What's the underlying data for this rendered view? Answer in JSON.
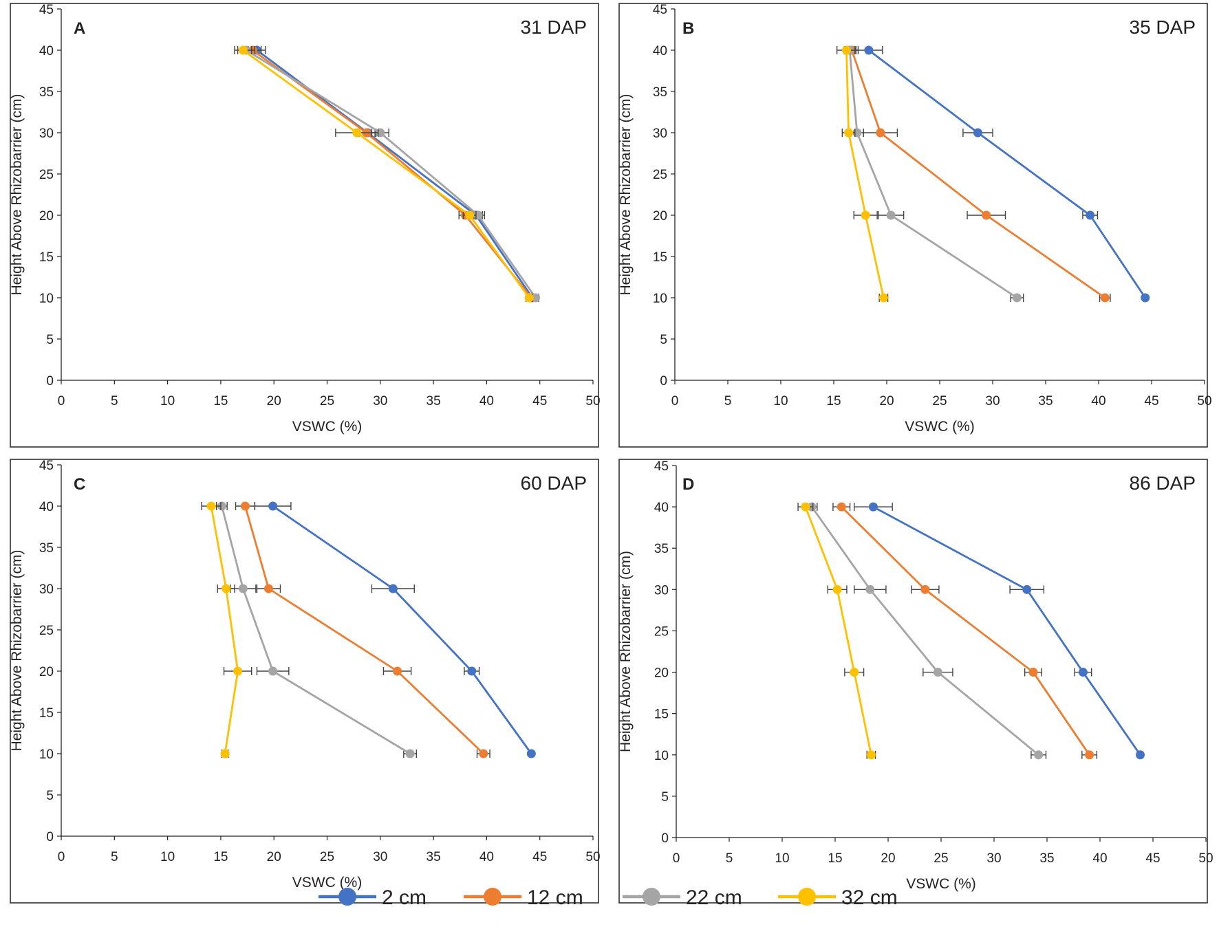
{
  "figure": {
    "legend": [
      {
        "name": "2 cm",
        "color": "#4472C4"
      },
      {
        "name": "12 cm",
        "color": "#ED7D31"
      },
      {
        "name": "22 cm",
        "color": "#A5A5A5"
      },
      {
        "name": "32 cm",
        "color": "#FFC000"
      }
    ]
  },
  "chart_data": [
    {
      "type": "line",
      "panel": "A",
      "title": "31 DAP",
      "xlabel": "VSWC (%)",
      "ylabel": "Height Above Rhizobarrier (cm)",
      "xlim": [
        0,
        50
      ],
      "ylim": [
        0,
        45
      ],
      "xticks": [
        0,
        5,
        10,
        15,
        20,
        25,
        30,
        35,
        40,
        45,
        50
      ],
      "yticks": [
        0,
        5,
        10,
        15,
        20,
        25,
        30,
        35,
        40,
        45
      ],
      "series": [
        {
          "name": "2 cm",
          "color": "#4472C4",
          "points": [
            [
              18.4,
              40
            ],
            [
              28.8,
              30
            ],
            [
              39.0,
              20
            ],
            [
              44.3,
              10
            ]
          ],
          "err": [
            0.8,
            0.8,
            0.6,
            0.3
          ]
        },
        {
          "name": "12 cm",
          "color": "#ED7D31",
          "points": [
            [
              18.0,
              40
            ],
            [
              28.7,
              30
            ],
            [
              38.0,
              20
            ],
            [
              44.2,
              10
            ]
          ],
          "err": [
            0.8,
            0.8,
            0.6,
            0.3
          ]
        },
        {
          "name": "22 cm",
          "color": "#A5A5A5",
          "points": [
            [
              17.4,
              40
            ],
            [
              30.0,
              30
            ],
            [
              39.2,
              20
            ],
            [
              44.6,
              10
            ]
          ],
          "err": [
            0.8,
            0.8,
            0.6,
            0.3
          ]
        },
        {
          "name": "32 cm",
          "color": "#FFC000",
          "points": [
            [
              17.1,
              40
            ],
            [
              27.8,
              30
            ],
            [
              38.4,
              20
            ],
            [
              44.0,
              10
            ]
          ],
          "err": [
            0.8,
            2.0,
            0.6,
            0.3
          ]
        }
      ]
    },
    {
      "type": "line",
      "panel": "B",
      "title": "35 DAP",
      "xlabel": "VSWC (%)",
      "ylabel": "Height Above Rhizobarrier (cm)",
      "xlim": [
        0,
        50
      ],
      "ylim": [
        0,
        45
      ],
      "xticks": [
        0,
        5,
        10,
        15,
        20,
        25,
        30,
        35,
        40,
        45,
        50
      ],
      "yticks": [
        0,
        5,
        10,
        15,
        20,
        25,
        30,
        35,
        40,
        45
      ],
      "series": [
        {
          "name": "2 cm",
          "color": "#4472C4",
          "points": [
            [
              18.3,
              40
            ],
            [
              28.6,
              30
            ],
            [
              39.2,
              20
            ],
            [
              44.4,
              10
            ]
          ],
          "err": [
            1.3,
            1.4,
            0.7,
            0
          ]
        },
        {
          "name": "12 cm",
          "color": "#ED7D31",
          "points": [
            [
              16.7,
              40
            ],
            [
              19.4,
              30
            ],
            [
              29.4,
              20
            ],
            [
              40.6,
              10
            ]
          ],
          "err": [
            0.6,
            1.6,
            1.8,
            0.5
          ]
        },
        {
          "name": "22 cm",
          "color": "#A5A5A5",
          "points": [
            [
              16.5,
              40
            ],
            [
              17.2,
              30
            ],
            [
              20.4,
              20
            ],
            [
              32.3,
              10
            ]
          ],
          "err": [
            0.5,
            0.6,
            1.2,
            0.6
          ]
        },
        {
          "name": "32 cm",
          "color": "#FFC000",
          "points": [
            [
              16.2,
              40
            ],
            [
              16.4,
              30
            ],
            [
              18.0,
              20
            ],
            [
              19.7,
              10
            ]
          ],
          "err": [
            0.9,
            0.6,
            1.1,
            0.4
          ]
        }
      ]
    },
    {
      "type": "line",
      "panel": "C",
      "title": "60 DAP",
      "xlabel": "VSWC (%)",
      "ylabel": "Height Above Rhizobarrier (cm)",
      "xlim": [
        0,
        50
      ],
      "ylim": [
        0,
        45
      ],
      "xticks": [
        0,
        5,
        10,
        15,
        20,
        25,
        30,
        35,
        40,
        45,
        50
      ],
      "yticks": [
        0,
        5,
        10,
        15,
        20,
        25,
        30,
        35,
        40,
        45
      ],
      "series": [
        {
          "name": "2 cm",
          "color": "#4472C4",
          "points": [
            [
              19.9,
              40
            ],
            [
              31.2,
              30
            ],
            [
              38.6,
              20
            ],
            [
              44.2,
              10
            ]
          ],
          "err": [
            1.7,
            2.0,
            0.7,
            0
          ]
        },
        {
          "name": "12 cm",
          "color": "#ED7D31",
          "points": [
            [
              17.3,
              40
            ],
            [
              19.5,
              30
            ],
            [
              31.6,
              20
            ],
            [
              39.7,
              10
            ]
          ],
          "err": [
            0.9,
            1.1,
            1.3,
            0.6
          ]
        },
        {
          "name": "22 cm",
          "color": "#A5A5A5",
          "points": [
            [
              15.1,
              40
            ],
            [
              17.1,
              30
            ],
            [
              19.9,
              20
            ],
            [
              32.8,
              10
            ]
          ],
          "err": [
            0.5,
            1.2,
            1.5,
            0.6
          ]
        },
        {
          "name": "32 cm",
          "color": "#FFC000",
          "points": [
            [
              14.1,
              40
            ],
            [
              15.5,
              30
            ],
            [
              16.6,
              20
            ],
            [
              15.4,
              10
            ]
          ],
          "err": [
            0.9,
            0.8,
            1.3,
            0.3
          ]
        }
      ]
    },
    {
      "type": "line",
      "panel": "D",
      "title": "86 DAP",
      "xlabel": "VSWC (%)",
      "ylabel": "Height Above Rhizobarrier (cm)",
      "xlim": [
        0,
        50
      ],
      "ylim": [
        0,
        45
      ],
      "xticks": [
        0,
        5,
        10,
        15,
        20,
        25,
        30,
        35,
        40,
        45,
        50
      ],
      "yticks": [
        0,
        5,
        10,
        15,
        20,
        25,
        30,
        35,
        40,
        45
      ],
      "series": [
        {
          "name": "2 cm",
          "color": "#4472C4",
          "points": [
            [
              18.6,
              40
            ],
            [
              33.1,
              30
            ],
            [
              38.4,
              20
            ],
            [
              43.8,
              10
            ]
          ],
          "err": [
            1.8,
            1.6,
            0.8,
            0
          ]
        },
        {
          "name": "12 cm",
          "color": "#ED7D31",
          "points": [
            [
              15.6,
              40
            ],
            [
              23.5,
              30
            ],
            [
              33.7,
              20
            ],
            [
              39.0,
              10
            ]
          ],
          "err": [
            0.8,
            1.3,
            0.8,
            0.7
          ]
        },
        {
          "name": "22 cm",
          "color": "#A5A5A5",
          "points": [
            [
              12.8,
              40
            ],
            [
              18.3,
              30
            ],
            [
              24.7,
              20
            ],
            [
              34.2,
              10
            ]
          ],
          "err": [
            0.5,
            1.5,
            1.4,
            0.7
          ]
        },
        {
          "name": "32 cm",
          "color": "#FFC000",
          "points": [
            [
              12.2,
              40
            ],
            [
              15.2,
              30
            ],
            [
              16.8,
              20
            ],
            [
              18.4,
              10
            ]
          ],
          "err": [
            0.7,
            0.9,
            0.9,
            0.4
          ]
        }
      ]
    }
  ]
}
